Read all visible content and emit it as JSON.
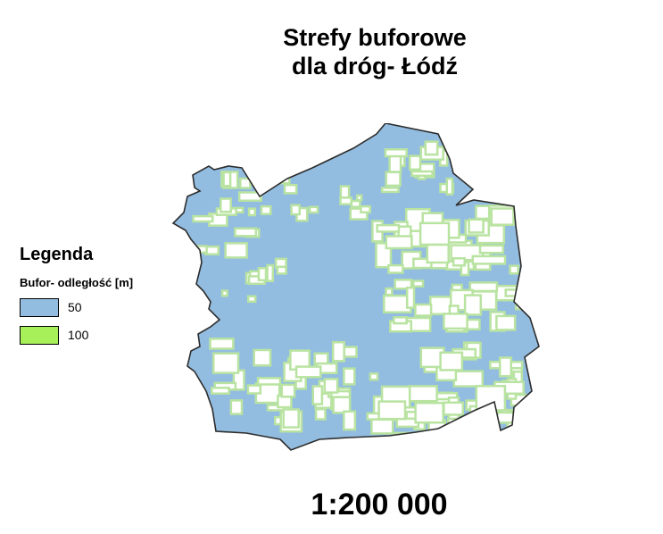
{
  "title": {
    "line1": "Strefy buforowe",
    "line2": "dla dróg- Łódź"
  },
  "legend": {
    "title": "Legenda",
    "subtitle": "Bufor- odległość [m]",
    "items": [
      {
        "label": "50",
        "color": "#93bde0"
      },
      {
        "label": "100",
        "color": "#a8f05a"
      }
    ]
  },
  "map": {
    "buffer_50_color": "#93bde0",
    "buffer_100_color": "#a8f05a",
    "road_line_color": "#b9e3a1",
    "boundary_color": "#2d2d2d"
  },
  "scale": "1:200 000"
}
